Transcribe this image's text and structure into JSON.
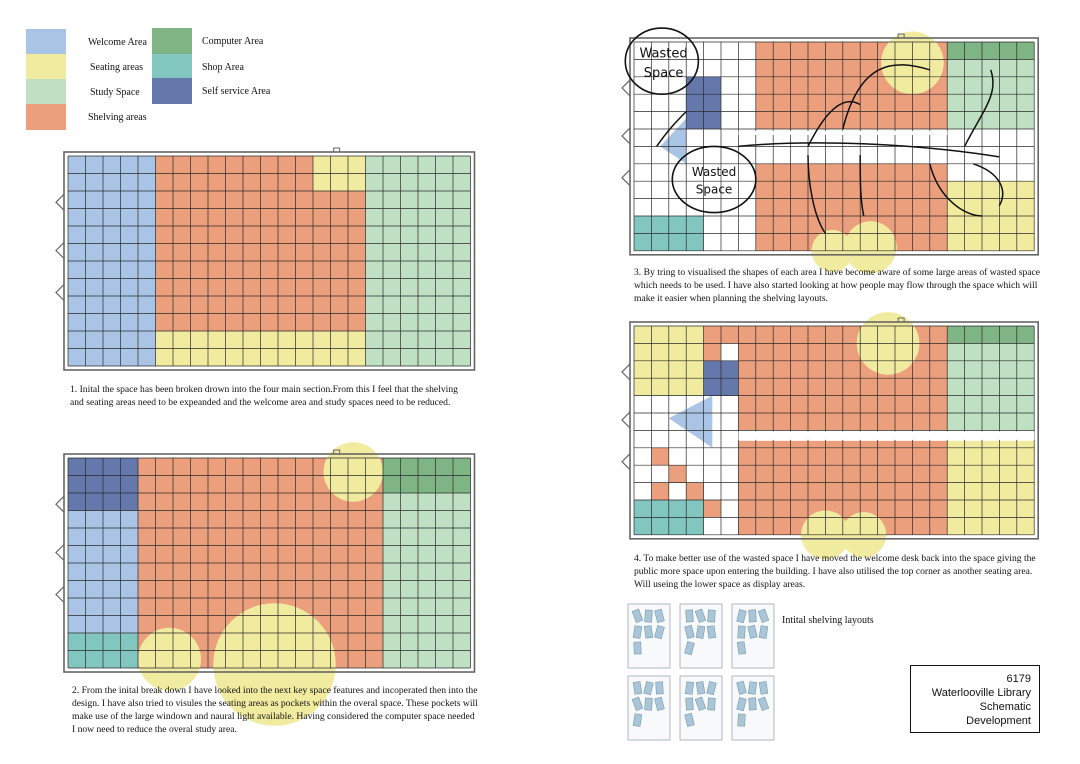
{
  "colors": {
    "welcome": "#aac4e6",
    "seating": "#f1eba0",
    "study": "#bfe0c3",
    "shelving": "#ec9f7c",
    "computer": "#7fb585",
    "shop": "#82c7bf",
    "self_service": "#6478ac",
    "grid_line": "#2a2a2a",
    "wall": "#666666"
  },
  "legend": {
    "welcome": "Welcome Area",
    "seating": "Seating areas",
    "study": "Study Space",
    "shelving": "Shelving areas",
    "computer": "Computer Area",
    "shop": "Shop Area",
    "self_service": "Self service Area"
  },
  "captions": {
    "step1": "1. Inital the space has been broken drown into the four main section.From this I feel that the shelving and seating areas need to be expeanded and the welcome area and study spaces need to be reduced.",
    "step2": "2. From the inital break down I have looked into the next key space features and incoperated then into the design. I have also tried to visules the seating areas as pockets within the overal space. These pockets will make use of the large windown and naural light available. Having considered the computer space needed I now need to reduce the overal study area.",
    "step3": "3. By tring to visualised the shapes of each area I have become aware of some large areas of wasted space which needs to be used. I have also started looking at how people may flow through the space which will make it easier when planning the shelving layouts.",
    "step4": "4. To make better use of the wasted space I have moved the welcome desk back into the space giving the public more space upon entering the building. I have also utilised the top corner as another seating area. Will useing the lower space as display areas."
  },
  "annotations": {
    "wasted_1": [
      "Wasted",
      "Space"
    ],
    "wasted_2": [
      "Wasted",
      "Space"
    ]
  },
  "shelving_label": "Intital shelving layouts",
  "title_block": {
    "number": "6179",
    "project": "Waterlooville Library",
    "stage": "Schematic Development"
  }
}
